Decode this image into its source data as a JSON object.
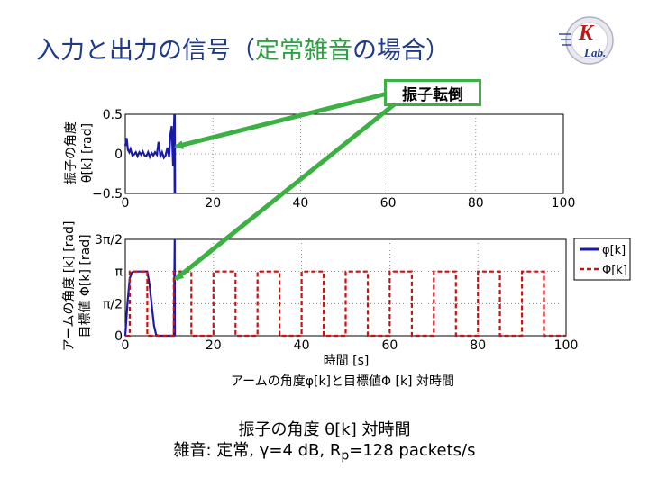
{
  "slide": {
    "title_a": "入力と出力の信号（",
    "title_b": "定常雑音",
    "title_c": "の場合）",
    "callout": "振子転倒",
    "logo_k": "K",
    "logo_lab": "Lab."
  },
  "caption": {
    "line1": "振子の角度 θ[k] 対時間",
    "line2_a": "雑音: 定常, γ=4 dB, R",
    "line2_sub": "p",
    "line2_b": "=128 packets/s"
  },
  "colors": {
    "title": "#1f3a8a",
    "accent": "#2ea043",
    "arrow": "#3cb043",
    "phi": "#1a1aa8",
    "Phi": "#cc1111"
  },
  "chart_data": [
    {
      "type": "line",
      "ylabel_line1": "振子の角度",
      "ylabel_line2": "θ[k] [rad]",
      "xlim": [
        0,
        100
      ],
      "ylim": [
        -0.5,
        0.5
      ],
      "xticks": [
        0,
        20,
        40,
        60,
        80,
        100
      ],
      "xtick_labels": [
        "0",
        "20",
        "40",
        "60",
        "80",
        "100"
      ],
      "yticks": [
        -0.5,
        0,
        0.5
      ],
      "ytick_labels": [
        "−0.5",
        "0",
        "0.5"
      ],
      "grid": true,
      "series": [
        {
          "color": "#1a1aa8",
          "x": [
            0,
            0.3,
            0.6,
            0.9,
            1.2,
            1.6,
            2.0,
            2.4,
            2.8,
            3.2,
            3.6,
            4.0,
            4.4,
            4.8,
            5.2,
            5.6,
            6.0,
            6.4,
            6.8,
            7.2,
            7.6,
            8.0,
            8.4,
            8.8,
            9.2,
            9.6,
            10.0,
            10.3,
            10.6,
            10.9,
            11.1,
            11.2,
            11.25,
            11.3,
            11.35
          ],
          "y": [
            0.1,
            0.2,
            0.05,
            0.02,
            0.06,
            -0.02,
            -0.01,
            0.02,
            -0.03,
            0.02,
            -0.01,
            0.03,
            -0.02,
            -0.03,
            0.02,
            -0.04,
            0.01,
            -0.02,
            0.02,
            -0.01,
            0.15,
            -0.03,
            0.02,
            -0.05,
            -0.02,
            0.08,
            -0.04,
            0.25,
            0.35,
            -0.15,
            0.3,
            0.5,
            -0.5,
            0.5,
            -0.5
          ]
        }
      ]
    },
    {
      "type": "line",
      "ylabel_line1": "アームの角度 [k] [rad]",
      "ylabel_line2": "目標値 Φ[k] [rad]",
      "xlabel": "時間 [s]",
      "title": "アームの角度φ[k]と目標値Φ [k] 対時間",
      "xlim": [
        0,
        100
      ],
      "ylim": [
        0,
        4.712
      ],
      "xticks": [
        0,
        20,
        40,
        60,
        80,
        100
      ],
      "xtick_labels": [
        "0",
        "20",
        "40",
        "60",
        "80",
        "100"
      ],
      "yticks": [
        0,
        1.5708,
        3.1416,
        4.7124
      ],
      "ytick_labels": [
        "0",
        "π/2",
        "π",
        "3π/2"
      ],
      "grid": true,
      "legend_position": "right",
      "series": [
        {
          "name": "φ[k]",
          "color": "#1a1aa8",
          "style": "solid",
          "x": [
            0,
            0.5,
            1.0,
            1.5,
            2.0,
            5.0,
            5.5,
            6.0,
            6.5,
            7.0,
            7.5,
            11.0,
            11.2,
            11.25
          ],
          "y": [
            0,
            1.6,
            2.8,
            3.1,
            3.14,
            3.14,
            2.5,
            1.5,
            0.5,
            0.05,
            0,
            0,
            4.71,
            0
          ]
        },
        {
          "name": "Φ[k]",
          "color": "#cc1111",
          "style": "dashed",
          "x": [
            0,
            1,
            1,
            5,
            5,
            11,
            11,
            15,
            15,
            20,
            20,
            25,
            25,
            30,
            30,
            35,
            35,
            40,
            40,
            45,
            45,
            50,
            50,
            55,
            55,
            60,
            60,
            65,
            65,
            70,
            70,
            75,
            75,
            80,
            80,
            85,
            85,
            90,
            90,
            95,
            95,
            100
          ],
          "y": [
            0,
            0,
            3.14,
            3.14,
            0,
            0,
            3.14,
            3.14,
            0,
            0,
            3.14,
            3.14,
            0,
            0,
            3.14,
            3.14,
            0,
            0,
            3.14,
            3.14,
            0,
            0,
            3.14,
            3.14,
            0,
            0,
            3.14,
            3.14,
            0,
            0,
            3.14,
            3.14,
            0,
            0,
            3.14,
            3.14,
            0,
            0,
            3.14,
            3.14,
            0,
            0
          ]
        }
      ]
    }
  ]
}
